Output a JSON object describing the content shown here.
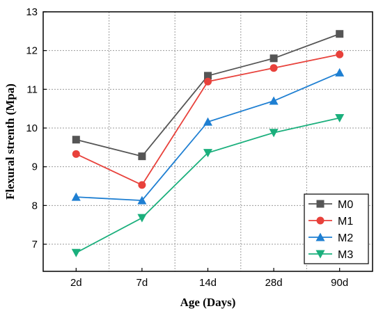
{
  "chart_data": {
    "type": "line",
    "title": "",
    "xlabel": "Age (Days)",
    "ylabel": "Flexural strenth (Mpa)",
    "categories": [
      "2d",
      "7d",
      "14d",
      "28d",
      "90d"
    ],
    "ylim": [
      6.3,
      13
    ],
    "yticks": [
      7,
      8,
      9,
      10,
      11,
      12,
      13
    ],
    "grid": true,
    "legend_position": "bottom-right",
    "series": [
      {
        "name": "M0",
        "values": [
          9.7,
          9.27,
          11.35,
          11.8,
          12.43
        ],
        "color": "#555555",
        "marker": "square"
      },
      {
        "name": "M1",
        "values": [
          9.33,
          8.53,
          11.2,
          11.55,
          11.9
        ],
        "color": "#e8413b",
        "marker": "circle"
      },
      {
        "name": "M2",
        "values": [
          8.22,
          8.13,
          10.16,
          10.7,
          11.43
        ],
        "color": "#1e7fd2",
        "marker": "triangle-up"
      },
      {
        "name": "M3",
        "values": [
          6.78,
          7.68,
          9.36,
          9.88,
          10.26
        ],
        "color": "#1aaf7c",
        "marker": "triangle-down"
      }
    ]
  }
}
